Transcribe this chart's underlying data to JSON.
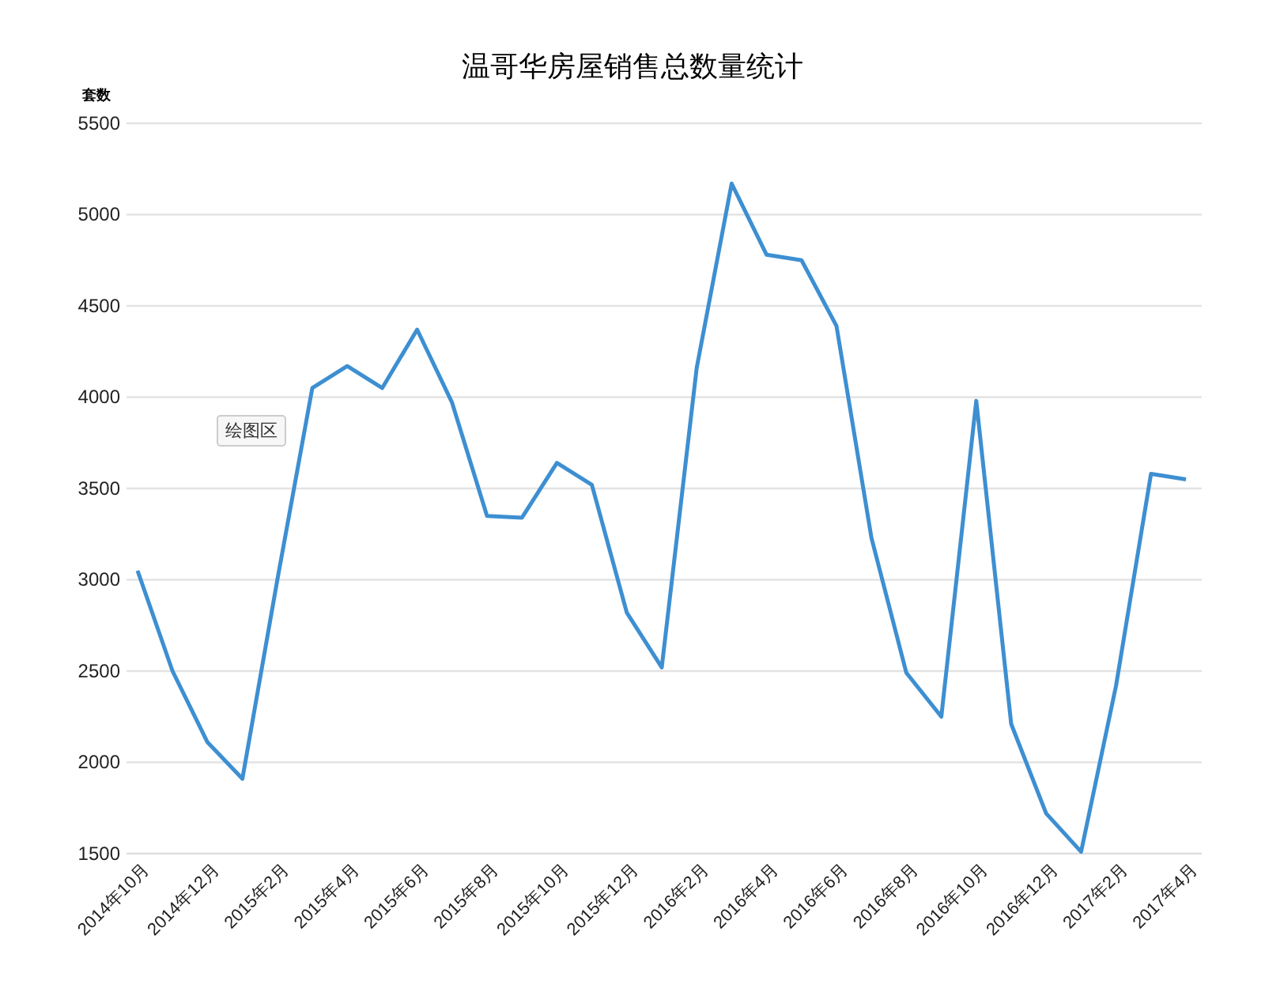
{
  "chart_data": {
    "type": "line",
    "title": "温哥华房屋销售总数量统计",
    "ylabel": "套数",
    "categories": [
      "2014年10月",
      null,
      "2014年12月",
      null,
      "2015年2月",
      null,
      "2015年4月",
      null,
      "2015年6月",
      null,
      "2015年8月",
      null,
      "2015年10月",
      null,
      "2015年12月",
      null,
      "2016年2月",
      null,
      "2016年4月",
      null,
      "2016年6月",
      null,
      "2016年8月",
      null,
      "2016年10月",
      null,
      "2016年12月",
      null,
      "2017年2月",
      null,
      "2017年4月"
    ],
    "series": [
      {
        "color": "#3d8fd1",
        "values": [
          3050,
          2500,
          2110,
          1910,
          3000,
          4050,
          4170,
          4050,
          4370,
          3970,
          3350,
          3340,
          3640,
          3520,
          2820,
          2520,
          4160,
          5170,
          4780,
          4750,
          4390,
          3230,
          2490,
          2250,
          3980,
          2210,
          1720,
          1510,
          2420,
          3580,
          3550
        ]
      }
    ],
    "ylim": [
      1500,
      5500
    ],
    "yticks": [
      1500,
      2000,
      2500,
      3000,
      3500,
      4000,
      4500,
      5000,
      5500
    ],
    "grid": "y",
    "legend": false,
    "marker": "none",
    "line_style": "solid",
    "annotations": [
      "绘图区"
    ]
  }
}
